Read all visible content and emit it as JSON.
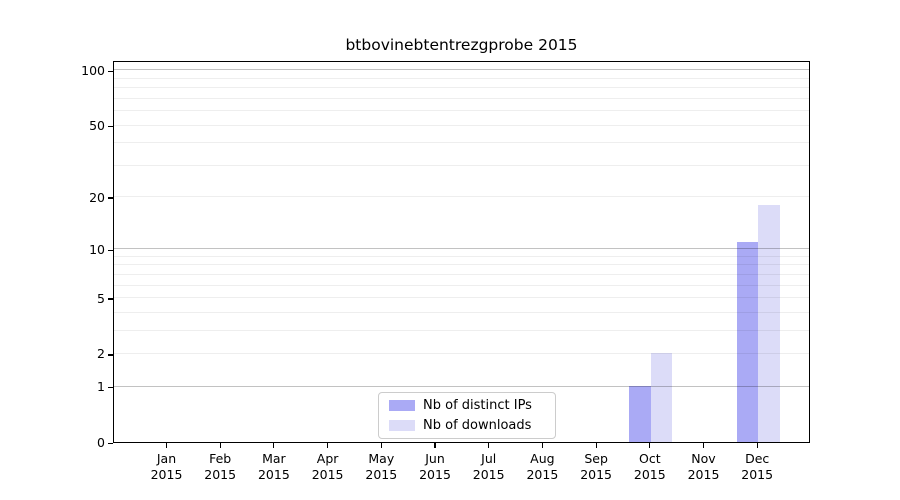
{
  "chart_data": {
    "type": "bar",
    "title": "btbovinebtentrezgprobe 2015",
    "categories": [
      "Jan",
      "Feb",
      "Mar",
      "Apr",
      "May",
      "Jun",
      "Jul",
      "Aug",
      "Sep",
      "Oct",
      "Nov",
      "Dec"
    ],
    "category_year": "2015",
    "series": [
      {
        "name": "Nb of distinct IPs",
        "color": "#aaaaf5",
        "values": [
          0,
          0,
          0,
          0,
          0,
          0,
          0,
          0,
          0,
          1,
          0,
          11
        ]
      },
      {
        "name": "Nb of downloads",
        "color": "#dcdcf8",
        "values": [
          0,
          0,
          0,
          0,
          0,
          0,
          0,
          0,
          0,
          2,
          0,
          18
        ]
      }
    ],
    "yscale": "log1p",
    "ylim": [
      0,
      114
    ],
    "yticks": [
      0,
      1,
      2,
      5,
      10,
      20,
      50,
      100
    ],
    "major_gridlines": [
      1,
      10,
      100
    ],
    "minor_gridlines": [
      2,
      3,
      4,
      5,
      6,
      7,
      8,
      9,
      20,
      30,
      40,
      50,
      60,
      70,
      80,
      90
    ],
    "grid": true,
    "legend_position": "lower center",
    "xlabel": "",
    "ylabel": ""
  }
}
